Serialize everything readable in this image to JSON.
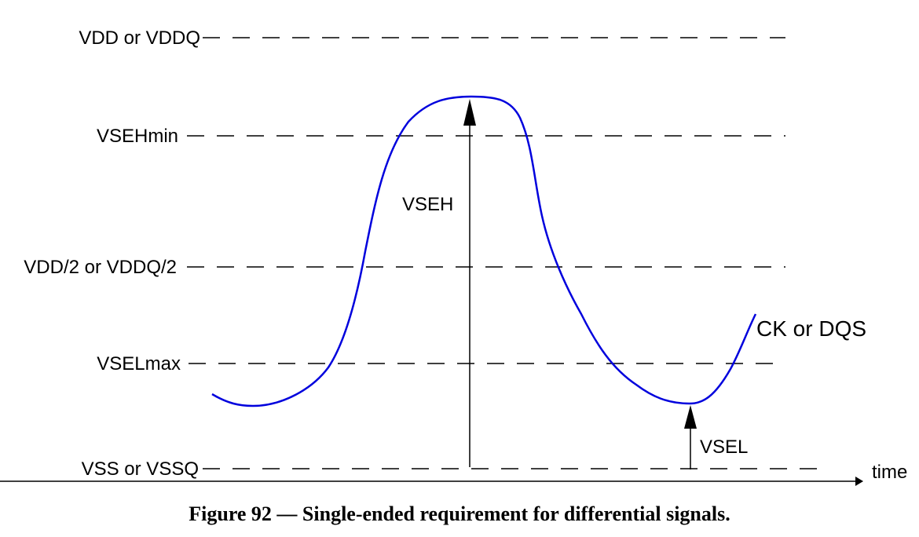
{
  "levels": {
    "vdd": "VDD or VDDQ",
    "vsehmin": "VSEHmin",
    "vddhalf": "VDD/2 or VDDQ/2",
    "vselmax": "VSELmax",
    "vss": "VSS or VSSQ"
  },
  "arrows": {
    "vseh": "VSEH",
    "vsel": "VSEL"
  },
  "axis": {
    "time": "time"
  },
  "signal": {
    "name": "CK or DQS",
    "color": "#0000dd"
  },
  "caption": "Figure 92 — Single-ended requirement for differential signals."
}
